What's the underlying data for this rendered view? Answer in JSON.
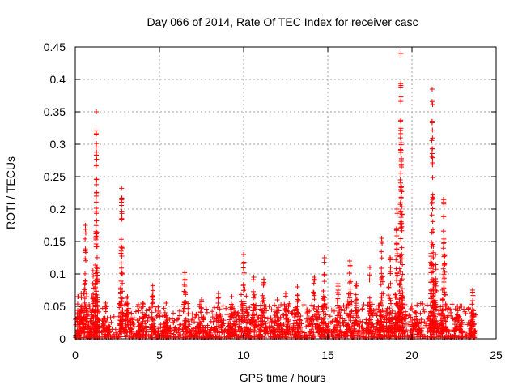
{
  "chart_data": {
    "type": "scatter",
    "title": "Day 066 of 2014, Rate Of TEC Index for receiver casc",
    "xlabel": "GPS time / hours",
    "ylabel": "ROTI / TECUs",
    "xlim": [
      0,
      25
    ],
    "ylim": [
      0,
      0.45
    ],
    "xticks": [
      0,
      5,
      10,
      15,
      20,
      25
    ],
    "yticks": [
      0,
      0.05,
      0.1,
      0.15,
      0.2,
      0.25,
      0.3,
      0.35,
      0.4,
      0.45
    ],
    "xtick_labels": [
      "0",
      "5",
      "10",
      "15",
      "20",
      "25"
    ],
    "ytick_labels": [
      "0",
      "0.05",
      "0.1",
      "0.15",
      "0.2",
      "0.25",
      "0.3",
      "0.35",
      "0.4",
      "0.45"
    ],
    "grid": true,
    "marker": "+",
    "series_color": "#ff0000",
    "data_time_range": [
      0,
      23.8
    ],
    "background_level": [
      0.002,
      0.035
    ],
    "bursts": [
      {
        "x": 0.15,
        "peak": 0.065,
        "width": 0.25
      },
      {
        "x": 0.35,
        "peak": 0.07,
        "width": 0.2
      },
      {
        "x": 0.6,
        "peak": 0.175,
        "width": 0.15
      },
      {
        "x": 1.05,
        "peak": 0.105,
        "width": 0.2
      },
      {
        "x": 1.25,
        "peak": 0.35,
        "width": 0.08
      },
      {
        "x": 1.8,
        "peak": 0.055,
        "width": 0.25
      },
      {
        "x": 2.75,
        "peak": 0.232,
        "width": 0.1
      },
      {
        "x": 3.1,
        "peak": 0.065,
        "width": 0.25
      },
      {
        "x": 4.0,
        "peak": 0.055,
        "width": 0.3
      },
      {
        "x": 4.6,
        "peak": 0.082,
        "width": 0.12
      },
      {
        "x": 5.4,
        "peak": 0.055,
        "width": 0.25
      },
      {
        "x": 6.5,
        "peak": 0.102,
        "width": 0.15
      },
      {
        "x": 7.5,
        "peak": 0.06,
        "width": 0.3
      },
      {
        "x": 8.5,
        "peak": 0.07,
        "width": 0.3
      },
      {
        "x": 9.3,
        "peak": 0.065,
        "width": 0.25
      },
      {
        "x": 10.0,
        "peak": 0.13,
        "width": 0.3
      },
      {
        "x": 10.6,
        "peak": 0.095,
        "width": 0.25
      },
      {
        "x": 11.2,
        "peak": 0.092,
        "width": 0.25
      },
      {
        "x": 12.0,
        "peak": 0.06,
        "width": 0.3
      },
      {
        "x": 12.5,
        "peak": 0.07,
        "width": 0.2
      },
      {
        "x": 13.2,
        "peak": 0.08,
        "width": 0.3
      },
      {
        "x": 14.2,
        "peak": 0.095,
        "width": 0.3
      },
      {
        "x": 14.8,
        "peak": 0.125,
        "width": 0.2
      },
      {
        "x": 15.6,
        "peak": 0.085,
        "width": 0.25
      },
      {
        "x": 16.3,
        "peak": 0.12,
        "width": 0.2
      },
      {
        "x": 16.7,
        "peak": 0.085,
        "width": 0.2
      },
      {
        "x": 17.5,
        "peak": 0.11,
        "width": 0.25
      },
      {
        "x": 18.2,
        "peak": 0.155,
        "width": 0.15
      },
      {
        "x": 18.7,
        "peak": 0.125,
        "width": 0.2
      },
      {
        "x": 19.1,
        "peak": 0.2,
        "width": 0.15
      },
      {
        "x": 19.35,
        "peak": 0.44,
        "width": 0.12
      },
      {
        "x": 20.2,
        "peak": 0.04,
        "width": 0.3
      },
      {
        "x": 21.2,
        "peak": 0.385,
        "width": 0.12
      },
      {
        "x": 21.4,
        "peak": 0.13,
        "width": 0.15
      },
      {
        "x": 21.9,
        "peak": 0.215,
        "width": 0.15
      },
      {
        "x": 22.7,
        "peak": 0.05,
        "width": 0.3
      },
      {
        "x": 23.6,
        "peak": 0.075,
        "width": 0.12
      }
    ]
  }
}
